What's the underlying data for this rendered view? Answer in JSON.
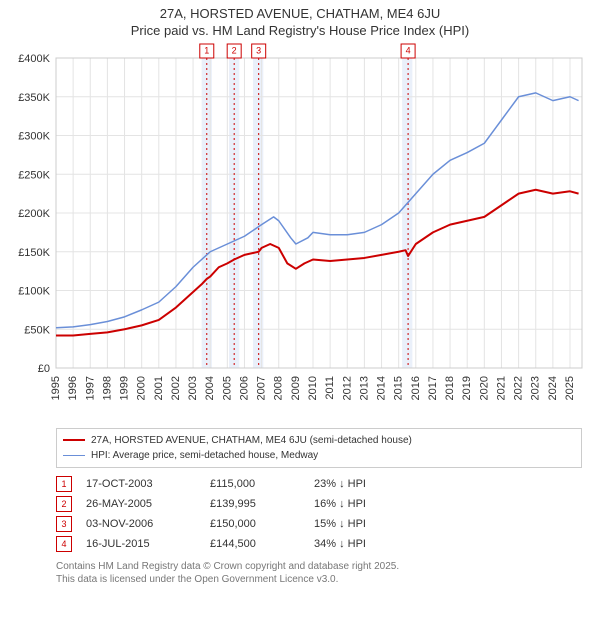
{
  "title_line1": "27A, HORSTED AVENUE, CHATHAM, ME4 6JU",
  "title_line2": "Price paid vs. HM Land Registry's House Price Index (HPI)",
  "chart": {
    "type": "line",
    "background_color": "#ffffff",
    "plot_border_color": "#cccccc",
    "grid_color": "#e4e4e4",
    "x_min": 1995,
    "x_max": 2025.7,
    "x_ticks": [
      1995,
      1996,
      1997,
      1998,
      1999,
      2000,
      2001,
      2002,
      2003,
      2004,
      2005,
      2006,
      2007,
      2008,
      2009,
      2010,
      2011,
      2012,
      2013,
      2014,
      2015,
      2016,
      2017,
      2018,
      2019,
      2020,
      2021,
      2022,
      2023,
      2024,
      2025
    ],
    "y_min": 0,
    "y_max": 400000,
    "y_ticks": [
      0,
      50000,
      100000,
      150000,
      200000,
      250000,
      300000,
      350000,
      400000
    ],
    "y_tick_labels": [
      "£0",
      "£50K",
      "£100K",
      "£150K",
      "£200K",
      "£250K",
      "£300K",
      "£350K",
      "£400K"
    ],
    "highlight_bands": [
      {
        "from": 2003.5,
        "to": 2004.1,
        "color": "#eaf0fa"
      },
      {
        "from": 2005.1,
        "to": 2005.7,
        "color": "#eaf0fa"
      },
      {
        "from": 2006.5,
        "to": 2007.1,
        "color": "#eaf0fa"
      },
      {
        "from": 2015.2,
        "to": 2015.8,
        "color": "#eaf0fa"
      }
    ],
    "markers": [
      {
        "n": "1",
        "x": 2003.8,
        "line_color": "#cc0000"
      },
      {
        "n": "2",
        "x": 2005.4,
        "line_color": "#cc0000"
      },
      {
        "n": "3",
        "x": 2006.83,
        "line_color": "#cc0000"
      },
      {
        "n": "4",
        "x": 2015.55,
        "line_color": "#cc0000"
      }
    ],
    "series": [
      {
        "name": "27A, HORSTED AVENUE, CHATHAM, ME4 6JU (semi-detached house)",
        "color": "#cc0000",
        "line_width": 2,
        "points": [
          [
            1995,
            42000
          ],
          [
            1996,
            42000
          ],
          [
            1997,
            44000
          ],
          [
            1998,
            46000
          ],
          [
            1999,
            50000
          ],
          [
            2000,
            55000
          ],
          [
            2001,
            62000
          ],
          [
            2002,
            78000
          ],
          [
            2003,
            98000
          ],
          [
            2003.5,
            108000
          ],
          [
            2003.8,
            115000
          ],
          [
            2004,
            118000
          ],
          [
            2004.5,
            130000
          ],
          [
            2005,
            135000
          ],
          [
            2005.4,
            139995
          ],
          [
            2006,
            146000
          ],
          [
            2006.83,
            150000
          ],
          [
            2007,
            155000
          ],
          [
            2007.5,
            160000
          ],
          [
            2008,
            155000
          ],
          [
            2008.5,
            135000
          ],
          [
            2009,
            128000
          ],
          [
            2009.5,
            135000
          ],
          [
            2010,
            140000
          ],
          [
            2011,
            138000
          ],
          [
            2012,
            140000
          ],
          [
            2013,
            142000
          ],
          [
            2014,
            146000
          ],
          [
            2015,
            150000
          ],
          [
            2015.4,
            152000
          ],
          [
            2015.55,
            144500
          ],
          [
            2016,
            160000
          ],
          [
            2017,
            175000
          ],
          [
            2018,
            185000
          ],
          [
            2019,
            190000
          ],
          [
            2020,
            195000
          ],
          [
            2021,
            210000
          ],
          [
            2022,
            225000
          ],
          [
            2023,
            230000
          ],
          [
            2024,
            225000
          ],
          [
            2025,
            228000
          ],
          [
            2025.5,
            225000
          ]
        ]
      },
      {
        "name": "HPI: Average price, semi-detached house, Medway",
        "color": "#6a8fd8",
        "line_width": 1.5,
        "points": [
          [
            1995,
            52000
          ],
          [
            1996,
            53000
          ],
          [
            1997,
            56000
          ],
          [
            1998,
            60000
          ],
          [
            1999,
            66000
          ],
          [
            2000,
            75000
          ],
          [
            2001,
            85000
          ],
          [
            2002,
            105000
          ],
          [
            2003,
            130000
          ],
          [
            2004,
            150000
          ],
          [
            2005,
            160000
          ],
          [
            2006,
            170000
          ],
          [
            2007,
            185000
          ],
          [
            2007.7,
            195000
          ],
          [
            2008,
            190000
          ],
          [
            2008.7,
            168000
          ],
          [
            2009,
            160000
          ],
          [
            2009.7,
            168000
          ],
          [
            2010,
            175000
          ],
          [
            2011,
            172000
          ],
          [
            2012,
            172000
          ],
          [
            2013,
            175000
          ],
          [
            2014,
            185000
          ],
          [
            2015,
            200000
          ],
          [
            2016,
            225000
          ],
          [
            2017,
            250000
          ],
          [
            2018,
            268000
          ],
          [
            2019,
            278000
          ],
          [
            2020,
            290000
          ],
          [
            2021,
            320000
          ],
          [
            2022,
            350000
          ],
          [
            2023,
            355000
          ],
          [
            2024,
            345000
          ],
          [
            2025,
            350000
          ],
          [
            2025.5,
            345000
          ]
        ]
      }
    ]
  },
  "legend": {
    "items": [
      {
        "label": "27A, HORSTED AVENUE, CHATHAM, ME4 6JU (semi-detached house)",
        "color": "#cc0000",
        "width": 2
      },
      {
        "label": "HPI: Average price, semi-detached house, Medway",
        "color": "#6a8fd8",
        "width": 1.5
      }
    ]
  },
  "events": [
    {
      "n": "1",
      "date": "17-OCT-2003",
      "price": "£115,000",
      "delta": "23% ↓ HPI"
    },
    {
      "n": "2",
      "date": "26-MAY-2005",
      "price": "£139,995",
      "delta": "16% ↓ HPI"
    },
    {
      "n": "3",
      "date": "03-NOV-2006",
      "price": "£150,000",
      "delta": "15% ↓ HPI"
    },
    {
      "n": "4",
      "date": "16-JUL-2015",
      "price": "£144,500",
      "delta": "34% ↓ HPI"
    }
  ],
  "footer_line1": "Contains HM Land Registry data © Crown copyright and database right 2025.",
  "footer_line2": "This data is licensed under the Open Government Licence v3.0."
}
